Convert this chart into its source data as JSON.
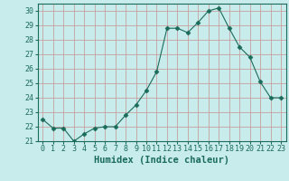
{
  "x": [
    0,
    1,
    2,
    3,
    4,
    5,
    6,
    7,
    8,
    9,
    10,
    11,
    12,
    13,
    14,
    15,
    16,
    17,
    18,
    19,
    20,
    21,
    22,
    23
  ],
  "y": [
    22.5,
    21.9,
    21.9,
    21.0,
    21.5,
    21.9,
    22.0,
    22.0,
    22.8,
    23.5,
    24.5,
    25.8,
    28.8,
    28.8,
    28.5,
    29.2,
    30.0,
    30.2,
    28.8,
    27.5,
    26.8,
    25.1,
    24.0,
    24.0
  ],
  "line_color": "#1a6b5a",
  "marker": "D",
  "markersize": 2.5,
  "bg_color": "#c8ecec",
  "grid_color": "#c8a0a0",
  "xlabel": "Humidex (Indice chaleur)",
  "xlim": [
    -0.5,
    23.5
  ],
  "ylim": [
    21,
    30.5
  ],
  "yticks": [
    21,
    22,
    23,
    24,
    25,
    26,
    27,
    28,
    29,
    30
  ],
  "xticks": [
    0,
    1,
    2,
    3,
    4,
    5,
    6,
    7,
    8,
    9,
    10,
    11,
    12,
    13,
    14,
    15,
    16,
    17,
    18,
    19,
    20,
    21,
    22,
    23
  ],
  "tick_color": "#1a6b5a",
  "tick_fontsize": 6,
  "xlabel_fontsize": 7.5
}
